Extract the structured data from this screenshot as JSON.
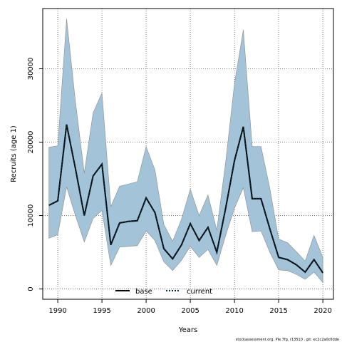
{
  "chart_data": {
    "type": "area",
    "xlabel": "Years",
    "ylabel": "Recruits (age 1)",
    "xlim": [
      1988.3,
      2021.2
    ],
    "ylim": [
      -1400,
      38200
    ],
    "x_ticks": [
      1990,
      1995,
      2000,
      2005,
      2010,
      2015,
      2020
    ],
    "y_ticks": [
      0,
      10000,
      20000,
      30000
    ],
    "grid": true,
    "legend_position": "bottom-center",
    "years": [
      1989,
      1990,
      1991,
      1992,
      1993,
      1994,
      1995,
      1996,
      1997,
      1998,
      1999,
      2000,
      2001,
      2002,
      2003,
      2004,
      2005,
      2006,
      2007,
      2008,
      2009,
      2010,
      2011,
      2012,
      2013,
      2014,
      2015,
      2016,
      2017,
      2018,
      2019,
      2020
    ],
    "band": {
      "name": "",
      "color": "#a3c4d8",
      "lower": [
        6900,
        7400,
        13900,
        10000,
        6400,
        9600,
        10700,
        3200,
        5700,
        5800,
        5900,
        7900,
        6600,
        3700,
        2500,
        3900,
        5800,
        4300,
        5400,
        3200,
        7300,
        11000,
        13800,
        7800,
        7900,
        5000,
        2600,
        2500,
        2000,
        1300,
        2300,
        900
      ],
      "upper": [
        19300,
        19500,
        36800,
        25500,
        15800,
        24000,
        26700,
        11200,
        14000,
        14300,
        14600,
        19400,
        16200,
        8800,
        6500,
        9500,
        13600,
        10000,
        12800,
        8000,
        17300,
        28000,
        35300,
        19400,
        19400,
        13700,
        6800,
        6300,
        5100,
        3800,
        7300,
        4300
      ]
    },
    "series": [
      {
        "name": "base",
        "style": "solid",
        "color": "#000000",
        "values": [
          11400,
          12000,
          22400,
          16400,
          10000,
          15400,
          17000,
          6000,
          9000,
          9200,
          9300,
          12400,
          10400,
          5500,
          4100,
          6000,
          8900,
          6600,
          8400,
          5000,
          11000,
          17500,
          22100,
          12300,
          12300,
          8200,
          4300,
          4000,
          3300,
          2300,
          4000,
          2200
        ]
      },
      {
        "name": "current",
        "style": "dotted",
        "color": "#0a2a3a",
        "values": [
          11400,
          12000,
          22400,
          16400,
          10000,
          15400,
          17000,
          6000,
          9000,
          9200,
          9300,
          12400,
          10400,
          5500,
          4100,
          6000,
          8900,
          6600,
          8400,
          5000,
          11000,
          17500,
          22100,
          12300,
          12300,
          8200,
          4300,
          4000,
          3300,
          2300,
          4000,
          2200
        ]
      }
    ]
  },
  "footer_text": "stockassessment.org, Ple.7fg, r13510 , git: ec2c2a0c6dde"
}
